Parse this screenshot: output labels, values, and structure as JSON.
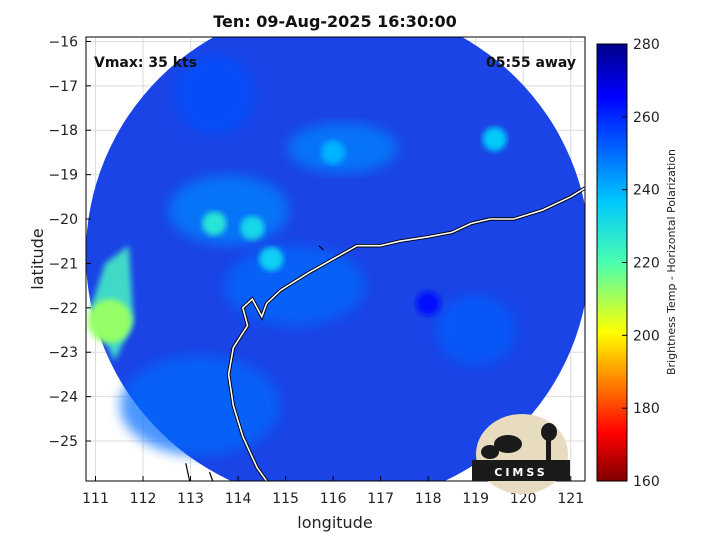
{
  "chart_data": {
    "type": "heatmap",
    "title": "Ten: 09-Aug-2025 16:30:00",
    "xlabel": "longitude",
    "ylabel": "latitude",
    "xlim": [
      110.8,
      121.3
    ],
    "ylim": [
      -25.9,
      -15.9
    ],
    "xticks": [
      111,
      112,
      113,
      114,
      115,
      116,
      117,
      118,
      119,
      120,
      121
    ],
    "yticks": [
      -16,
      -17,
      -18,
      -19,
      -20,
      -21,
      -22,
      -23,
      -24,
      -25
    ],
    "grid": true,
    "colorbar": {
      "label": "Brightness Temp - Horizontal Polarization",
      "range": [
        160,
        280
      ],
      "ticks": [
        160,
        180,
        200,
        220,
        240,
        260,
        280
      ],
      "colormap": "jet"
    },
    "annotations": {
      "vmax": "Vmax: 35 kts",
      "time_away": "05:55 away"
    },
    "field_center": {
      "lon": 116.1,
      "lat": -20.8
    },
    "features": [
      {
        "lon": 113.5,
        "lat": -20.1,
        "value": 228
      },
      {
        "lon": 114.3,
        "lat": -20.2,
        "value": 232
      },
      {
        "lon": 114.7,
        "lat": -20.9,
        "value": 234
      },
      {
        "lon": 116.0,
        "lat": -18.5,
        "value": 240
      },
      {
        "lon": 119.4,
        "lat": -18.2,
        "value": 236
      },
      {
        "lon": 111.3,
        "lat": -22.3,
        "value": 212
      },
      {
        "lon": 118.0,
        "lat": -21.9,
        "value": 264
      }
    ]
  },
  "logo": {
    "text": "CIMSS"
  },
  "colors": {
    "background_blue": "#1a44e6",
    "coastline": "#ffffff",
    "frame": "#000000"
  }
}
